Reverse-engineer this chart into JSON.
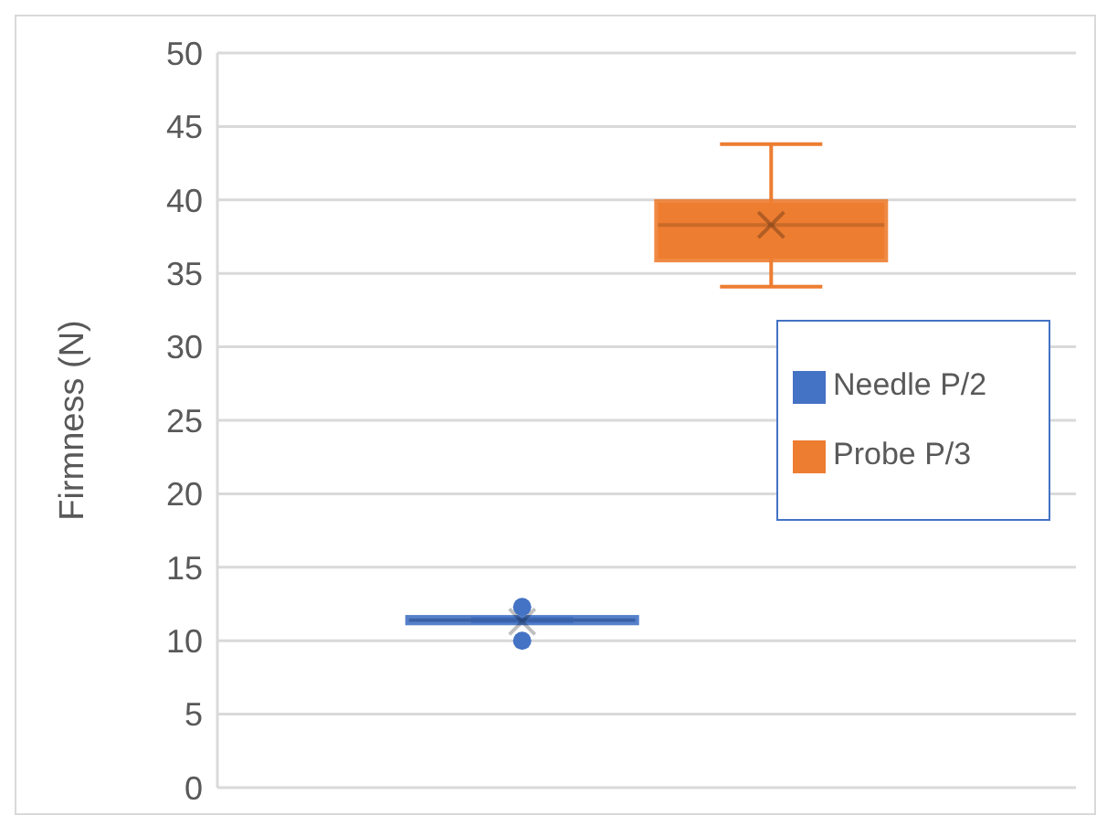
{
  "chart_data": {
    "type": "box",
    "ylabel": "Firmness (N)",
    "categories": [
      null
    ],
    "ylim": [
      0,
      50
    ],
    "yticks": [
      0,
      5,
      10,
      15,
      20,
      25,
      30,
      35,
      40,
      45,
      50
    ],
    "grid": "y",
    "legend": "right",
    "marker": "cross",
    "series": [
      {
        "name": "Needle P/2",
        "color": "#4472c4",
        "boxes": [
          {
            "low": 11.3,
            "q1": 11.3,
            "median": 11.4,
            "q3": 11.5,
            "high": 11.5,
            "mean": 11.3,
            "outliers": [
              12.3,
              10.0
            ]
          }
        ]
      },
      {
        "name": "Probe P/3",
        "color": "#ed7d31",
        "boxes": [
          {
            "low": 34.1,
            "q1": 36.0,
            "median": 38.3,
            "q3": 39.8,
            "high": 43.8,
            "mean": 38.3
          }
        ]
      }
    ]
  }
}
